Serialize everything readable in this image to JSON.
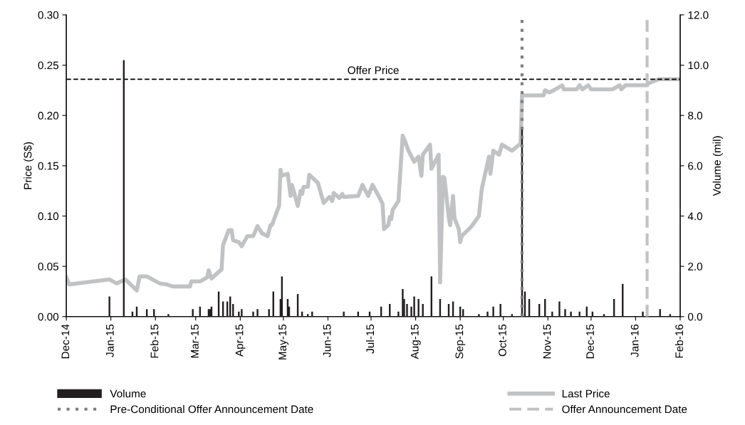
{
  "chart_data": {
    "type": "line",
    "ylabel": "Price (S$)",
    "y2label": "Volume (mil)",
    "xlim": [
      "2014-12-01",
      "2016-02-01"
    ],
    "xticks": [
      {
        "value": "2014-12-01",
        "label": "Dec-14"
      },
      {
        "value": "2015-01-01",
        "label": "Jan-15"
      },
      {
        "value": "2015-02-01",
        "label": "Feb-15"
      },
      {
        "value": "2015-03-01",
        "label": "Mar-15"
      },
      {
        "value": "2015-04-01",
        "label": "Apr-15"
      },
      {
        "value": "2015-05-01",
        "label": "May-15"
      },
      {
        "value": "2015-06-01",
        "label": "Jun-15"
      },
      {
        "value": "2015-07-01",
        "label": "Jul-15"
      },
      {
        "value": "2015-08-01",
        "label": "Aug-15"
      },
      {
        "value": "2015-09-01",
        "label": "Sep-15"
      },
      {
        "value": "2015-10-01",
        "label": "Oct-15"
      },
      {
        "value": "2015-11-01",
        "label": "Nov-15"
      },
      {
        "value": "2015-12-01",
        "label": "Dec-15"
      },
      {
        "value": "2016-01-01",
        "label": "Jan-16"
      },
      {
        "value": "2016-02-01",
        "label": "Feb-16"
      }
    ],
    "ylim": [
      0,
      0.3
    ],
    "yticks": [
      {
        "value": 0,
        "label": "0.00"
      },
      {
        "value": 0.05,
        "label": "0.05"
      },
      {
        "value": 0.1,
        "label": "0.10"
      },
      {
        "value": 0.15,
        "label": "0.15"
      },
      {
        "value": 0.2,
        "label": "0.20"
      },
      {
        "value": 0.25,
        "label": "0.25"
      },
      {
        "value": 0.3,
        "label": "0.30"
      }
    ],
    "y2lim": [
      0,
      12
    ],
    "y2ticks": [
      {
        "value": 0,
        "label": "0.0"
      },
      {
        "value": 2,
        "label": "2.0"
      },
      {
        "value": 4,
        "label": "4.0"
      },
      {
        "value": 6,
        "label": "6.0"
      },
      {
        "value": 8,
        "label": "8.0"
      },
      {
        "value": 10,
        "label": "10.0"
      },
      {
        "value": 12,
        "label": "12.0"
      }
    ],
    "grid": false,
    "legend": "bottom",
    "series": [
      {
        "name": "Volume",
        "type": "bar",
        "axis": "y2",
        "color": "#231f20",
        "x": [
          "2014-12-31",
          "2015-01-10",
          "2015-01-16",
          "2015-01-19",
          "2015-01-26",
          "2015-01-31",
          "2015-02-10",
          "2015-02-27",
          "2015-03-04",
          "2015-03-10",
          "2015-03-11",
          "2015-03-12",
          "2015-03-17",
          "2015-03-20",
          "2015-03-23",
          "2015-03-25",
          "2015-03-27",
          "2015-03-31",
          "2015-04-02",
          "2015-04-10",
          "2015-04-13",
          "2015-04-21",
          "2015-04-24",
          "2015-04-29",
          "2015-04-30",
          "2015-05-04",
          "2015-05-05",
          "2015-05-11",
          "2015-05-14",
          "2015-05-18",
          "2015-05-21",
          "2015-06-12",
          "2015-06-22",
          "2015-06-30",
          "2015-07-08",
          "2015-07-14",
          "2015-07-20",
          "2015-07-23",
          "2015-07-24",
          "2015-07-26",
          "2015-07-29",
          "2015-07-31",
          "2015-08-03",
          "2015-08-06",
          "2015-08-12",
          "2015-08-18",
          "2015-08-24",
          "2015-08-27",
          "2015-09-01",
          "2015-09-03",
          "2015-09-14",
          "2015-09-20",
          "2015-09-24",
          "2015-09-29",
          "2015-10-07",
          "2015-10-14",
          "2015-10-16",
          "2015-10-19",
          "2015-10-26",
          "2015-10-30",
          "2015-11-04",
          "2015-11-09",
          "2015-11-13",
          "2015-11-17",
          "2015-11-23",
          "2015-11-28",
          "2015-12-02",
          "2015-12-10",
          "2015-12-17",
          "2015-12-23",
          "2016-01-06",
          "2016-01-18",
          "2016-01-25"
        ],
        "values": [
          0.8,
          10.2,
          0.2,
          0.4,
          0.3,
          0.3,
          0.1,
          0.3,
          0.4,
          0.3,
          0.3,
          0.4,
          1.0,
          0.6,
          0.6,
          0.8,
          0.5,
          0.2,
          0.3,
          0.2,
          0.3,
          0.3,
          1.0,
          0.7,
          1.6,
          0.7,
          0.4,
          0.9,
          0.2,
          0.1,
          0.2,
          0.2,
          0.2,
          0.2,
          0.4,
          0.5,
          0.2,
          1.1,
          0.7,
          0.5,
          0.4,
          0.8,
          0.7,
          0.5,
          1.6,
          0.7,
          0.5,
          0.6,
          0.4,
          0.3,
          0.1,
          0.2,
          0.4,
          0.5,
          0.1,
          7.5,
          1.0,
          0.7,
          0.5,
          0.7,
          0.2,
          0.6,
          0.3,
          0.2,
          0.2,
          0.4,
          0.2,
          0.1,
          0.7,
          1.3,
          0.2,
          0.3,
          0.1
        ]
      },
      {
        "name": "Last Price",
        "color": "#c1c2c4",
        "x": [
          "2014-12-01",
          "2014-12-03",
          "2014-12-31",
          "2015-01-05",
          "2015-01-11",
          "2015-01-14",
          "2015-01-19",
          "2015-01-21",
          "2015-01-26",
          "2015-02-04",
          "2015-02-09",
          "2015-02-13",
          "2015-02-16",
          "2015-02-25",
          "2015-02-26",
          "2015-03-04",
          "2015-03-09",
          "2015-03-10",
          "2015-03-12",
          "2015-03-19",
          "2015-03-20",
          "2015-03-24",
          "2015-03-26",
          "2015-03-27",
          "2015-03-31",
          "2015-04-02",
          "2015-04-06",
          "2015-04-10",
          "2015-04-13",
          "2015-04-16",
          "2015-04-20",
          "2015-04-22",
          "2015-04-23",
          "2015-04-28",
          "2015-04-29",
          "2015-04-30",
          "2015-05-04",
          "2015-05-06",
          "2015-05-07",
          "2015-05-11",
          "2015-05-13",
          "2015-05-14",
          "2015-05-15",
          "2015-05-18",
          "2015-05-19",
          "2015-05-25",
          "2015-05-29",
          "2015-06-02",
          "2015-06-04",
          "2015-06-05",
          "2015-06-09",
          "2015-06-11",
          "2015-06-12",
          "2015-06-22",
          "2015-06-25",
          "2015-06-29",
          "2015-07-02",
          "2015-07-07",
          "2015-07-09",
          "2015-07-10",
          "2015-07-13",
          "2015-07-14",
          "2015-07-15",
          "2015-07-16",
          "2015-07-20",
          "2015-07-23",
          "2015-07-25",
          "2015-07-27",
          "2015-07-31",
          "2015-08-03",
          "2015-08-05",
          "2015-08-06",
          "2015-08-11",
          "2015-08-12",
          "2015-08-17",
          "2015-08-18",
          "2015-08-20",
          "2015-08-21",
          "2015-08-24",
          "2015-08-25",
          "2015-08-27",
          "2015-08-28",
          "2015-08-31",
          "2015-09-01",
          "2015-09-02",
          "2015-09-09",
          "2015-09-14",
          "2015-09-16",
          "2015-09-21",
          "2015-09-22",
          "2015-09-24",
          "2015-09-28",
          "2015-09-30",
          "2015-10-07",
          "2015-10-13",
          "2015-10-14",
          "2015-10-29",
          "2015-10-30",
          "2015-11-02",
          "2015-11-05",
          "2015-11-11",
          "2015-11-12",
          "2015-11-21",
          "2015-11-23",
          "2015-11-25",
          "2015-11-29",
          "2015-12-01",
          "2015-12-16",
          "2015-12-21",
          "2015-12-22",
          "2015-12-25",
          "2016-01-09",
          "2016-01-10",
          "2016-01-17",
          "2016-02-01"
        ],
        "values": [
          0.039,
          0.032,
          0.037,
          0.033,
          0.037,
          0.033,
          0.026,
          0.04,
          0.04,
          0.033,
          0.032,
          0.03,
          0.03,
          0.03,
          0.035,
          0.035,
          0.039,
          0.046,
          0.038,
          0.047,
          0.071,
          0.086,
          0.086,
          0.076,
          0.074,
          0.07,
          0.08,
          0.08,
          0.09,
          0.083,
          0.08,
          0.091,
          0.091,
          0.11,
          0.146,
          0.14,
          0.142,
          0.12,
          0.131,
          0.11,
          0.125,
          0.122,
          0.129,
          0.129,
          0.141,
          0.133,
          0.113,
          0.119,
          0.115,
          0.123,
          0.118,
          0.122,
          0.119,
          0.12,
          0.131,
          0.12,
          0.131,
          0.118,
          0.112,
          0.087,
          0.091,
          0.099,
          0.097,
          0.106,
          0.115,
          0.18,
          0.173,
          0.165,
          0.154,
          0.159,
          0.14,
          0.161,
          0.171,
          0.147,
          0.161,
          0.034,
          0.139,
          0.138,
          0.099,
          0.091,
          0.12,
          0.098,
          0.087,
          0.074,
          0.08,
          0.09,
          0.1,
          0.127,
          0.159,
          0.142,
          0.165,
          0.161,
          0.171,
          0.165,
          0.172,
          0.22,
          0.22,
          0.225,
          0.223,
          0.225,
          0.23,
          0.226,
          0.226,
          0.23,
          0.226,
          0.23,
          0.226,
          0.226,
          0.23,
          0.226,
          0.23,
          0.23,
          0.232,
          0.236,
          0.236
        ]
      }
    ],
    "ref_lines": [
      {
        "axis": "y",
        "value": 0.236,
        "label": "Offer Price",
        "color": "#000000",
        "line_style": "dashed"
      },
      {
        "axis": "x",
        "value": "2015-10-14",
        "label": "Pre-Conditional Offer Announcement Date",
        "color": "#7f7f7f",
        "line_style": "dotted"
      },
      {
        "axis": "x",
        "value": "2016-01-09",
        "label": "Offer Announcement Date",
        "color": "#c1c2c4",
        "line_style": "dashed"
      }
    ]
  }
}
